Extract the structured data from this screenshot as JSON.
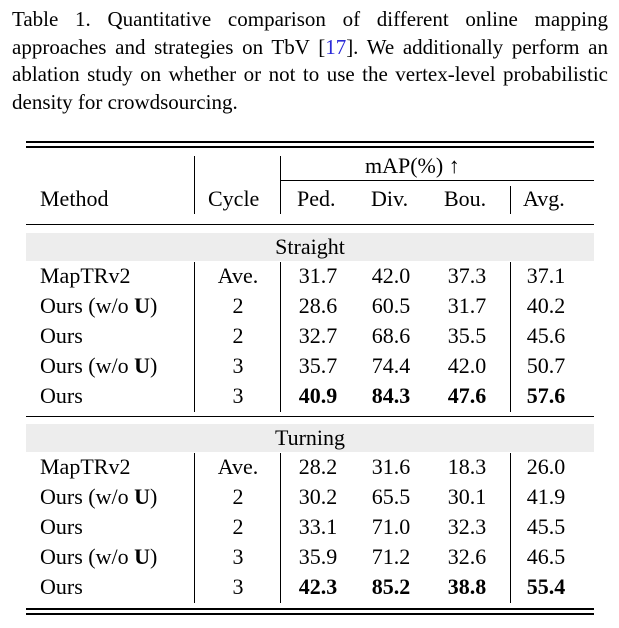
{
  "caption": {
    "prefix": "Table 1. Quantitative comparison of different online mapping approaches and strategies on TbV [",
    "ref": "17",
    "suffix": "]. We additionally perform an ablation study on whether or not to use the vertex-level probabilistic density for crowdsourcing."
  },
  "header": {
    "group_label": "mAP(%) ↑",
    "method": "Method",
    "cycle": "Cycle",
    "ped": "Ped.",
    "div": "Div.",
    "bou": "Bou.",
    "avg": "Avg."
  },
  "sections": [
    {
      "title": "Straight",
      "rows": [
        {
          "method": "MapTRv2",
          "u": "",
          "suffix": "",
          "cycle": "Ave.",
          "ped": "31.7",
          "div": "42.0",
          "bou": "37.3",
          "avg": "37.1",
          "bold": false
        },
        {
          "method": "Ours (w/o ",
          "u": "U",
          "suffix": ")",
          "cycle": "2",
          "ped": "28.6",
          "div": "60.5",
          "bou": "31.7",
          "avg": "40.2",
          "bold": false
        },
        {
          "method": "Ours",
          "u": "",
          "suffix": "",
          "cycle": "2",
          "ped": "32.7",
          "div": "68.6",
          "bou": "35.5",
          "avg": "45.6",
          "bold": false
        },
        {
          "method": "Ours (w/o ",
          "u": "U",
          "suffix": ")",
          "cycle": "3",
          "ped": "35.7",
          "div": "74.4",
          "bou": "42.0",
          "avg": "50.7",
          "bold": false
        },
        {
          "method": "Ours",
          "u": "",
          "suffix": "",
          "cycle": "3",
          "ped": "40.9",
          "div": "84.3",
          "bou": "47.6",
          "avg": "57.6",
          "bold": true
        }
      ]
    },
    {
      "title": "Turning",
      "rows": [
        {
          "method": "MapTRv2",
          "u": "",
          "suffix": "",
          "cycle": "Ave.",
          "ped": "28.2",
          "div": "31.6",
          "bou": "18.3",
          "avg": "26.0",
          "bold": false
        },
        {
          "method": "Ours (w/o ",
          "u": "U",
          "suffix": ")",
          "cycle": "2",
          "ped": "30.2",
          "div": "65.5",
          "bou": "30.1",
          "avg": "41.9",
          "bold": false
        },
        {
          "method": "Ours",
          "u": "",
          "suffix": "",
          "cycle": "2",
          "ped": "33.1",
          "div": "71.0",
          "bou": "32.3",
          "avg": "45.5",
          "bold": false
        },
        {
          "method": "Ours (w/o ",
          "u": "U",
          "suffix": ")",
          "cycle": "3",
          "ped": "35.9",
          "div": "71.2",
          "bou": "32.6",
          "avg": "46.5",
          "bold": false
        },
        {
          "method": "Ours",
          "u": "",
          "suffix": "",
          "cycle": "3",
          "ped": "42.3",
          "div": "85.2",
          "bou": "38.8",
          "avg": "55.4",
          "bold": true
        }
      ]
    }
  ]
}
